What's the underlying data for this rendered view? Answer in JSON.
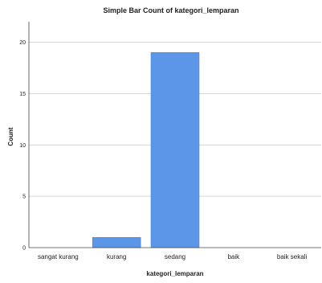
{
  "chart_data": {
    "type": "bar",
    "title": "Simple Bar Count of kategori_lemparan",
    "xlabel": "kategori_lemparan",
    "ylabel": "Count",
    "categories": [
      "sangat kurang",
      "kurang",
      "sedang",
      "baik",
      "baik sekali"
    ],
    "values": [
      0,
      1,
      19,
      0,
      0
    ],
    "ylim": [
      0,
      22
    ],
    "yticks": [
      0,
      5,
      10,
      15,
      20
    ],
    "grid": "horizontal",
    "bar_color": "#5b96e8",
    "legend": "none"
  }
}
